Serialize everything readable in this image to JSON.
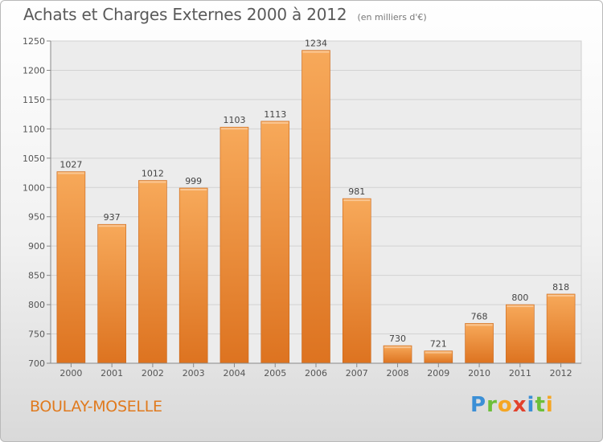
{
  "chart_data": {
    "type": "bar",
    "title": "Achats et Charges Externes 2000 à 2012",
    "subtitle": "(en milliers d'€)",
    "categories": [
      "2000",
      "2001",
      "2002",
      "2003",
      "2004",
      "2005",
      "2006",
      "2007",
      "2008",
      "2009",
      "2010",
      "2011",
      "2012"
    ],
    "values": [
      1027,
      937,
      1012,
      999,
      1103,
      1113,
      1234,
      981,
      730,
      721,
      768,
      800,
      818
    ],
    "ylim": [
      700,
      1250
    ],
    "yticks": [
      700,
      750,
      800,
      850,
      900,
      950,
      1000,
      1050,
      1100,
      1150,
      1200,
      1250
    ],
    "grid": true,
    "bar_color_top": "#f7a95a",
    "bar_color_bottom": "#dd7320"
  },
  "footer": {
    "place": "BOULAY-MOSELLE",
    "logo_letters": [
      "P",
      "r",
      "o",
      "x",
      "i",
      "t",
      "i"
    ],
    "logo_colors": [
      "#3b8fd6",
      "#6cbf3a",
      "#f5a623",
      "#e2412c",
      "#3b8fd6",
      "#6cbf3a",
      "#f5a623"
    ]
  }
}
